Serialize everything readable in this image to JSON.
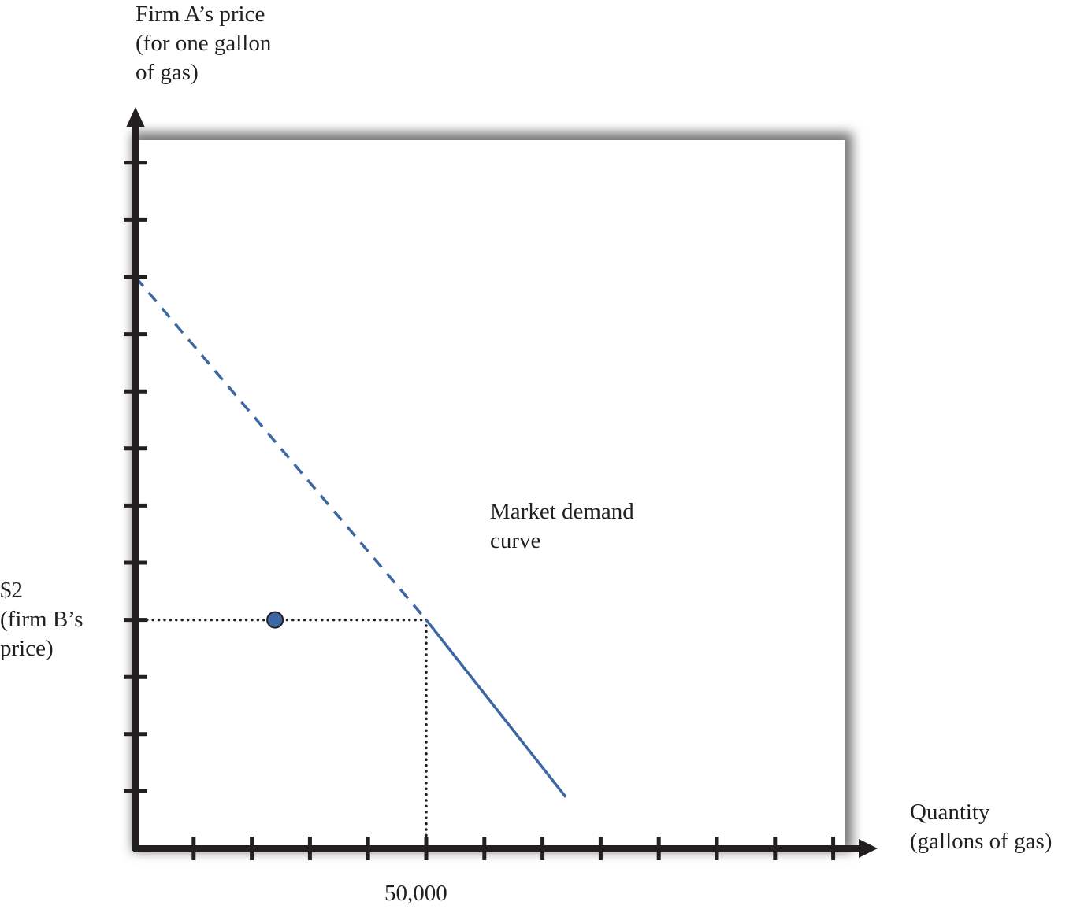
{
  "chart_data": {
    "type": "line",
    "title": "",
    "ylabel": "Firm A’s price\n(for one gallon\nof gas)",
    "xlabel": "Quantity\n(gallons of gas)",
    "xlim": [
      0,
      120000
    ],
    "ylim": [
      0,
      6
    ],
    "x_ticks": [
      10000,
      20000,
      30000,
      40000,
      50000,
      60000,
      70000,
      80000,
      90000,
      100000,
      110000,
      120000
    ],
    "y_ticks": [
      0.5,
      1,
      1.5,
      2,
      2.5,
      3,
      3.5,
      4,
      4.5,
      5,
      5.5,
      6
    ],
    "labeled_ticks": {
      "x": [
        {
          "value": 50000,
          "label": "50,000"
        }
      ],
      "y": [
        {
          "value": 2,
          "label": "$2\n(firm B’s\nprice)"
        }
      ]
    },
    "grid": false,
    "series": [
      {
        "name": "Market demand curve",
        "style": "dashed",
        "color": "#3d67a3",
        "x": [
          0,
          50000
        ],
        "y": [
          5,
          2
        ]
      },
      {
        "name": "Market demand curve",
        "style": "solid",
        "color": "#3d67a3",
        "x": [
          50000,
          74000
        ],
        "y": [
          2,
          0.45
        ]
      }
    ],
    "reference_lines": [
      {
        "style": "dotted",
        "x": [
          0,
          50000
        ],
        "y": [
          2,
          2
        ]
      },
      {
        "style": "dotted",
        "x": [
          50000,
          50000
        ],
        "y": [
          2,
          0
        ]
      }
    ],
    "points": [
      {
        "x": 24000,
        "y": 2,
        "color": "#3d67a3"
      }
    ],
    "annotations": [
      {
        "text": "Market demand\ncurve"
      }
    ]
  }
}
